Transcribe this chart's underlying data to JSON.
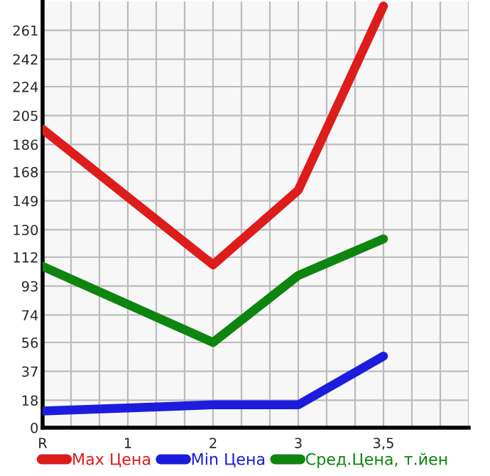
{
  "chart_data": {
    "type": "line",
    "categories": [
      "R",
      "1",
      "2",
      "3",
      "3,5"
    ],
    "ylim": [
      0,
      280
    ],
    "yticks": [
      0,
      18,
      37,
      56,
      74,
      93,
      112,
      130,
      149,
      168,
      186,
      205,
      224,
      242,
      261
    ],
    "grid": true,
    "legend": "bottom",
    "series": [
      {
        "name": "Max Цена",
        "color": "#dd1c1c",
        "values": [
          196,
          null,
          107,
          156,
          277
        ]
      },
      {
        "name": "Min Цена",
        "color": "#1c1cdd",
        "values": [
          11,
          null,
          15,
          15,
          47
        ]
      },
      {
        "name": "Сред.Цена, т.йен",
        "color": "#0e850e",
        "values": [
          106,
          null,
          56,
          100,
          124
        ]
      }
    ]
  }
}
